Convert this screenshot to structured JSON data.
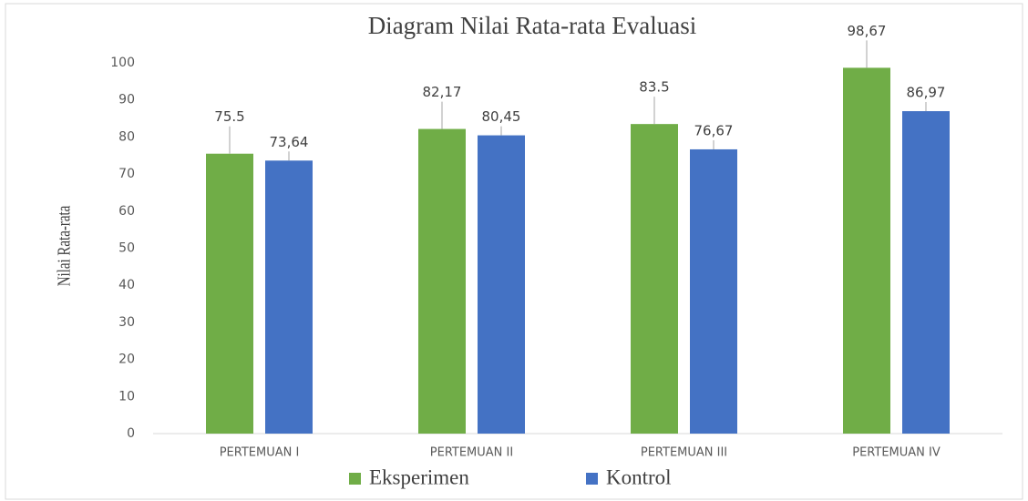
{
  "chart_data": {
    "type": "bar",
    "title": "Diagram  Nilai Rata-rata  Evaluasi",
    "y_label": "Nilai Rata-rata",
    "categories": [
      "PERTEMUAN I",
      "PERTEMUAN II",
      "PERTEMUAN III",
      "PERTEMUAN IV"
    ],
    "series": [
      {
        "name": "Eksperimen",
        "color": "#70ad47",
        "values": [
          75.5,
          82.17,
          83.5,
          98.67
        ],
        "value_labels": [
          "75.5",
          "82,17",
          "83.5",
          "98,67"
        ]
      },
      {
        "name": "Kontrol",
        "color": "#4472c4",
        "values": [
          73.64,
          80.45,
          76.67,
          86.97
        ],
        "value_labels": [
          "73,64",
          "80,45",
          "76,67",
          "86,97"
        ]
      }
    ],
    "ylim": [
      0,
      100
    ],
    "yticks": [
      0,
      10,
      20,
      30,
      40,
      50,
      60,
      70,
      80,
      90,
      100
    ],
    "grid": false,
    "legend": "bottom"
  }
}
